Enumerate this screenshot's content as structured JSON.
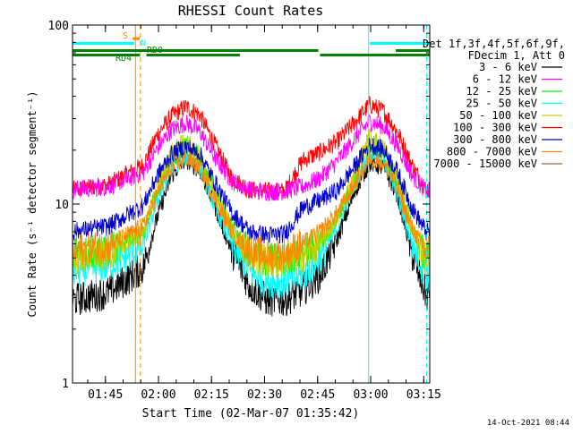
{
  "chart_data": {
    "type": "line",
    "title": "RHESSI Count Rates",
    "xlabel": "Start Time (02-Mar-07 01:35:42)",
    "ylabel": "Count Rate (s⁻¹ detector segment⁻¹)",
    "ylog": true,
    "ylim": [
      1,
      100
    ],
    "xlim_minutes": [
      0,
      101
    ],
    "x_ticks": [
      {
        "label": "01:45",
        "min": 9.3
      },
      {
        "label": "02:00",
        "min": 24.3
      },
      {
        "label": "02:15",
        "min": 39.3
      },
      {
        "label": "02:30",
        "min": 54.3
      },
      {
        "label": "02:45",
        "min": 69.3
      },
      {
        "label": "03:00",
        "min": 84.3
      },
      {
        "label": "03:15",
        "min": 99.3
      }
    ],
    "y_ticks": [
      {
        "label": "1",
        "value": 1
      },
      {
        "label": "10",
        "value": 10
      },
      {
        "label": "100",
        "value": 100
      }
    ],
    "legend_header": [
      "Det 1f,3f,4f,5f,6f,9f,",
      "FDecim 1, Att 0"
    ],
    "legend_position": "right",
    "series": [
      {
        "name": "3 - 6 keV",
        "color": "#000000",
        "x": [
          0,
          10,
          20,
          24,
          28,
          32,
          36,
          40,
          45,
          50,
          55,
          60,
          65,
          70,
          75,
          80,
          84,
          88,
          92,
          96,
          100
        ],
        "values": [
          2.9,
          3.2,
          4.4,
          8.5,
          14.5,
          17.8,
          15.5,
          10.0,
          5.5,
          3.5,
          2.9,
          2.9,
          3.3,
          4.0,
          6.5,
          12.0,
          17.0,
          16.0,
          11.0,
          5.2,
          3.1
        ]
      },
      {
        "name": "6 - 12 keV",
        "color": "#ff00ff",
        "x": [
          0,
          10,
          20,
          24,
          28,
          32,
          36,
          40,
          45,
          50,
          55,
          60,
          65,
          70,
          75,
          80,
          84,
          88,
          92,
          96,
          100
        ],
        "values": [
          12.0,
          12.5,
          15.0,
          20.5,
          26.0,
          28.5,
          25.5,
          18.5,
          13.5,
          12.0,
          11.7,
          11.8,
          12.5,
          14.0,
          17.5,
          23.5,
          29.0,
          27.0,
          21.0,
          14.5,
          11.8
        ]
      },
      {
        "name": "12 - 25 keV",
        "color": "#00ff00",
        "x": [
          0,
          10,
          20,
          24,
          28,
          32,
          36,
          40,
          45,
          50,
          55,
          60,
          65,
          70,
          75,
          80,
          84,
          88,
          92,
          96,
          100
        ],
        "values": [
          5.2,
          5.5,
          7.0,
          12.0,
          18.0,
          21.0,
          18.5,
          12.0,
          7.5,
          5.3,
          4.9,
          4.9,
          5.3,
          6.0,
          8.5,
          14.5,
          22.0,
          20.0,
          13.0,
          7.5,
          5.0
        ]
      },
      {
        "name": "25 - 50 keV",
        "color": "#00ffff",
        "x": [
          0,
          10,
          20,
          24,
          28,
          32,
          36,
          40,
          45,
          50,
          55,
          60,
          65,
          70,
          75,
          80,
          84,
          88,
          92,
          96,
          100
        ],
        "values": [
          4.2,
          4.5,
          5.8,
          10.5,
          16.0,
          18.5,
          16.0,
          10.0,
          6.0,
          4.2,
          3.7,
          3.7,
          4.0,
          5.0,
          7.5,
          13.5,
          19.5,
          18.0,
          11.0,
          6.0,
          4.0
        ]
      },
      {
        "name": "50 - 100 keV",
        "color": "#cccc00",
        "x": [
          0,
          10,
          20,
          24,
          28,
          32,
          36,
          40,
          45,
          50,
          55,
          60,
          65,
          70,
          75,
          80,
          84,
          88,
          92,
          96,
          100
        ],
        "values": [
          5.0,
          5.3,
          6.8,
          12.5,
          19.5,
          22.5,
          19.0,
          12.0,
          7.2,
          5.1,
          4.7,
          4.7,
          5.1,
          5.9,
          8.5,
          15.0,
          24.0,
          21.0,
          13.5,
          7.2,
          4.8
        ]
      },
      {
        "name": "100 - 300 keV",
        "color": "#ff0000",
        "x": [
          0,
          10,
          20,
          24,
          28,
          32,
          36,
          40,
          45,
          50,
          55,
          60,
          65,
          70,
          75,
          80,
          84,
          88,
          92,
          96,
          100
        ],
        "values": [
          12.0,
          12.8,
          16.5,
          24.5,
          31.0,
          35.0,
          31.5,
          22.0,
          14.0,
          12.0,
          11.8,
          11.8,
          17.5,
          19.5,
          22.5,
          29.0,
          36.0,
          33.0,
          25.0,
          16.5,
          12.0
        ]
      },
      {
        "name": "300 - 800 keV",
        "color": "#0000cc",
        "x": [
          0,
          10,
          20,
          24,
          28,
          32,
          36,
          40,
          45,
          50,
          55,
          60,
          65,
          70,
          75,
          80,
          84,
          88,
          92,
          96,
          100
        ],
        "values": [
          7.0,
          7.5,
          9.8,
          14.5,
          19.0,
          21.0,
          19.0,
          13.5,
          9.0,
          7.0,
          6.7,
          6.8,
          9.5,
          10.5,
          12.0,
          16.5,
          21.5,
          20.0,
          15.0,
          9.5,
          7.0
        ]
      },
      {
        "name": "800 - 7000 keV",
        "color": "#ff8800",
        "x": [
          0,
          10,
          20,
          24,
          28,
          32,
          36,
          40,
          45,
          50,
          55,
          60,
          65,
          70,
          75,
          80,
          84,
          88,
          92,
          96,
          100
        ],
        "values": [
          5.5,
          5.8,
          7.5,
          11.5,
          16.0,
          18.0,
          16.0,
          11.0,
          7.0,
          5.5,
          5.2,
          5.3,
          6.0,
          7.0,
          9.0,
          13.0,
          18.0,
          17.0,
          12.0,
          7.2,
          5.5
        ]
      },
      {
        "name": "7000 - 15000 keV",
        "color": "#996633",
        "x": [],
        "values": []
      }
    ],
    "flags": [
      {
        "label": "RD0",
        "color": "#008000",
        "level": 72,
        "segments": [
          [
            0,
            51.8
          ],
          [
            91.4,
            101
          ]
        ]
      },
      {
        "label": "RD4",
        "color": "#008000",
        "level": 68,
        "segments": [
          [
            0,
            19.1
          ],
          [
            20.9,
            47.3
          ],
          [
            70.0,
            101
          ]
        ]
      },
      {
        "label": "",
        "color": "#008000",
        "level": 72,
        "segments": [
          [
            47.3,
            69.5
          ]
        ]
      },
      {
        "label": "S",
        "color": "#ff8800",
        "level": 84,
        "segments": [
          [
            17.0,
            19.0
          ]
        ]
      },
      {
        "label": "N",
        "color": "#00ffff",
        "level": 79,
        "segments": [
          [
            0,
            17.5
          ],
          [
            84.0,
            101
          ]
        ]
      }
    ],
    "vlines": [
      {
        "min": 17.8,
        "color": "#ff8800",
        "style": "solid"
      },
      {
        "min": 19.2,
        "color": "#ff8800",
        "style": "dashed"
      },
      {
        "min": 83.7,
        "color": "#00ffff",
        "style": "solid"
      },
      {
        "min": 100.1,
        "color": "#00ffff",
        "style": "dashed"
      }
    ]
  },
  "footer": {
    "timestamp": "14-Oct-2021 08:44"
  }
}
